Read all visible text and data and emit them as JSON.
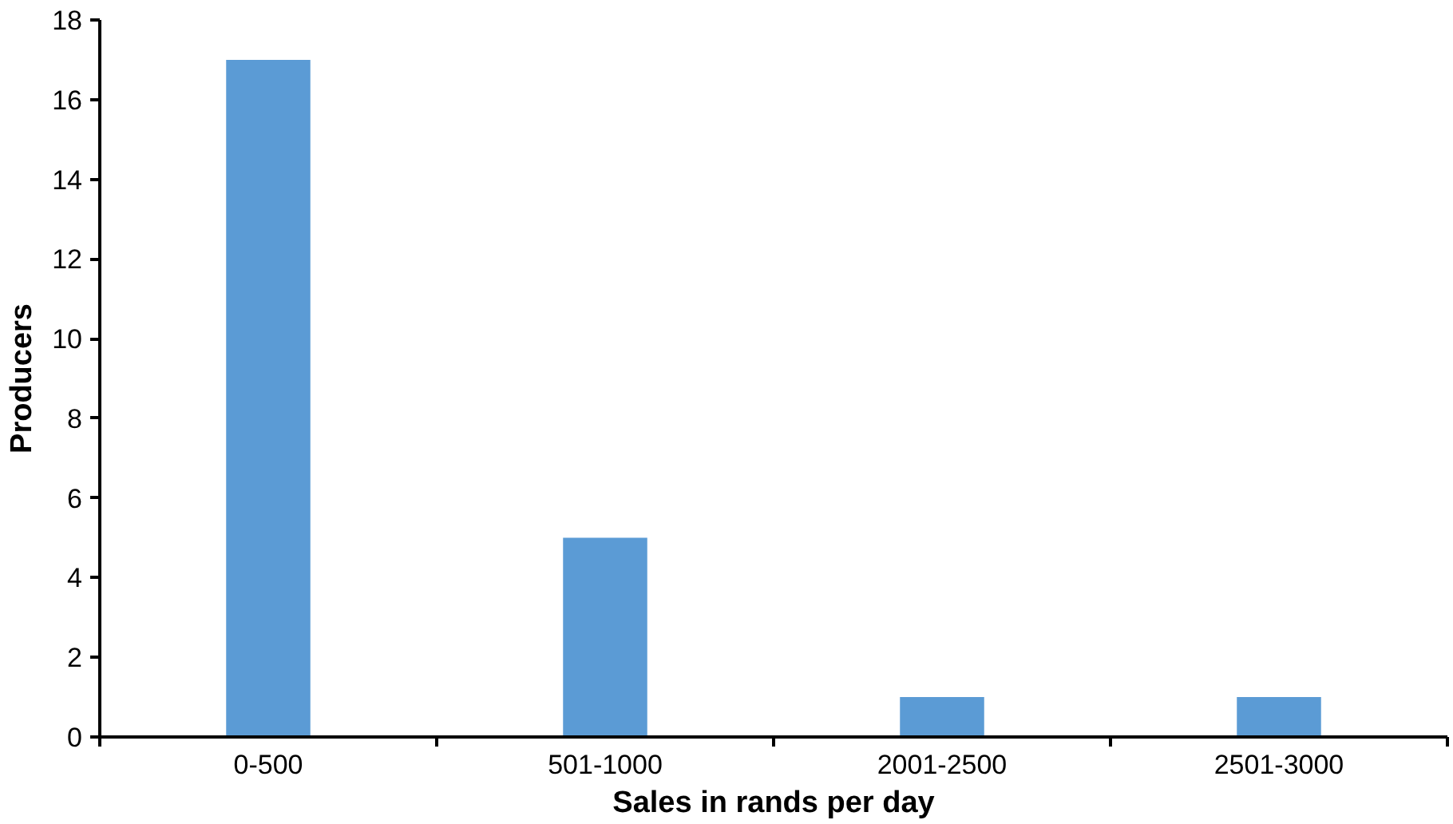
{
  "chart_data": {
    "type": "bar",
    "xlabel": "Sales in rands per day",
    "ylabel": "Producers",
    "categories": [
      "0-500",
      "501-1000",
      "2001-2500",
      "2501-3000"
    ],
    "values": [
      17,
      5,
      1,
      1
    ],
    "color": "#5b9bd5",
    "ylim": [
      0,
      18
    ],
    "yticks": [
      0,
      2,
      4,
      6,
      8,
      10,
      12,
      14,
      16,
      18
    ],
    "grid": false
  }
}
